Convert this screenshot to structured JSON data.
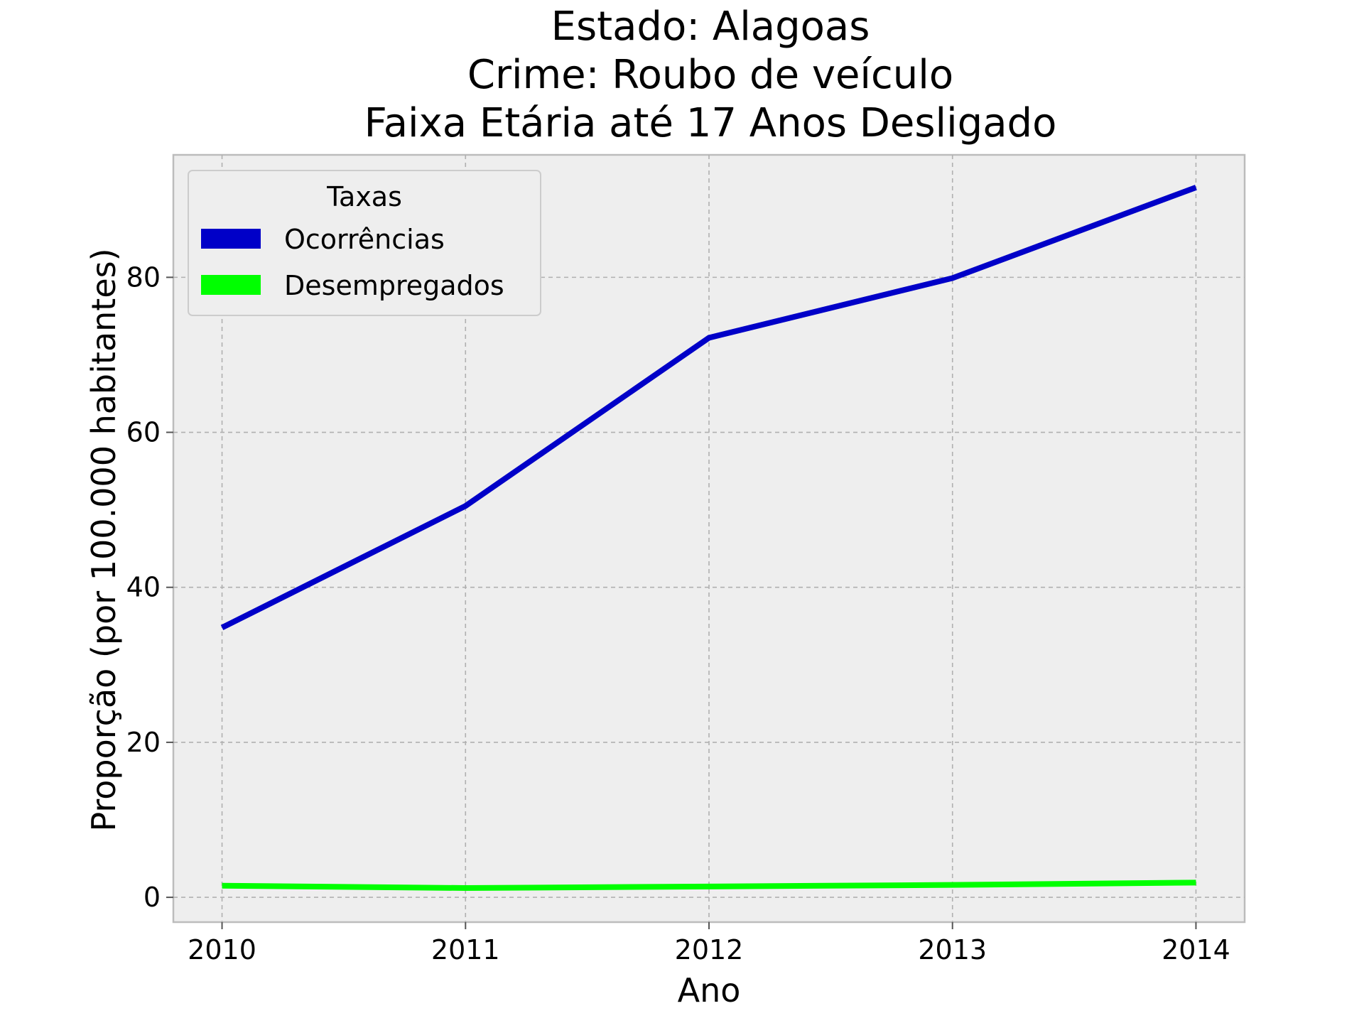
{
  "chart_data": {
    "type": "line",
    "title": [
      "Estado: Alagoas",
      "Crime: Roubo de veículo",
      "Faixa Etária até 17 Anos   Desligado"
    ],
    "xlabel": "Ano",
    "ylabel": "Proporção (por 100.000 habitantes)",
    "x": [
      2010,
      2011,
      2012,
      2013,
      2014
    ],
    "xticks": [
      "2010",
      "2011",
      "2012",
      "2013",
      "2014"
    ],
    "yticks": [
      "0",
      "20",
      "40",
      "60",
      "80"
    ],
    "ylim": [
      -3.2,
      95.8
    ],
    "grid": true,
    "legend": {
      "title": "Taxas",
      "placement": "top-left"
    },
    "series": [
      {
        "name": "Ocorrências",
        "color": "#0000c8",
        "values": [
          34.8,
          50.5,
          72.2,
          79.9,
          91.6
        ]
      },
      {
        "name": "Desempregados",
        "color": "#00ff00",
        "values": [
          1.5,
          1.2,
          1.4,
          1.6,
          1.9
        ]
      }
    ]
  }
}
